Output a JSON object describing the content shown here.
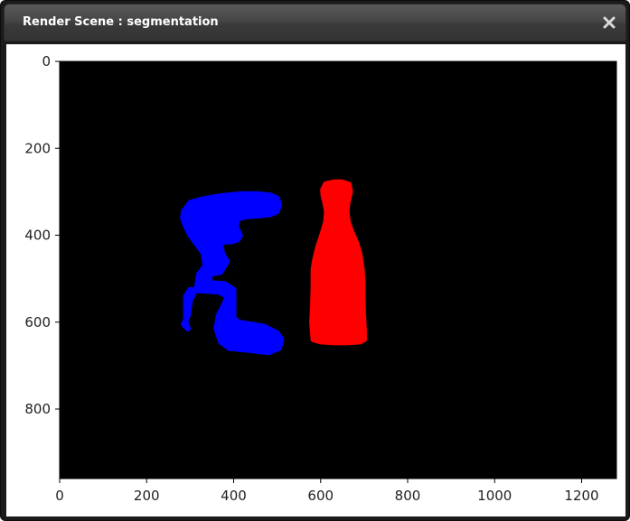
{
  "window": {
    "title": "Render Scene : segmentation",
    "close_icon": "close-x-icon"
  },
  "chart_data": {
    "type": "image",
    "description_free": true,
    "xlim": [
      0,
      1280
    ],
    "ylim": [
      960,
      0
    ],
    "x_ticks": [
      0,
      200,
      400,
      600,
      800,
      1000,
      1200
    ],
    "y_ticks": [
      0,
      200,
      400,
      600,
      800
    ],
    "x_tick_labels": [
      "0",
      "200",
      "400",
      "600",
      "800",
      "1000",
      "1200"
    ],
    "y_tick_labels": [
      "0",
      "200",
      "400",
      "600",
      "800"
    ],
    "background_color": "#000000",
    "segments": [
      {
        "color": "#0000ff",
        "polygon": [
          [
            285,
            345
          ],
          [
            300,
            325
          ],
          [
            325,
            318
          ],
          [
            355,
            312
          ],
          [
            385,
            308
          ],
          [
            420,
            305
          ],
          [
            455,
            305
          ],
          [
            485,
            308
          ],
          [
            500,
            315
          ],
          [
            505,
            330
          ],
          [
            500,
            345
          ],
          [
            485,
            352
          ],
          [
            460,
            355
          ],
          [
            430,
            357
          ],
          [
            410,
            362
          ],
          [
            405,
            380
          ],
          [
            415,
            400
          ],
          [
            410,
            410
          ],
          [
            395,
            415
          ],
          [
            375,
            415
          ],
          [
            370,
            425
          ],
          [
            375,
            445
          ],
          [
            385,
            460
          ],
          [
            370,
            485
          ],
          [
            345,
            490
          ],
          [
            345,
            510
          ],
          [
            380,
            512
          ],
          [
            400,
            525
          ],
          [
            400,
            570
          ],
          [
            400,
            590
          ],
          [
            410,
            600
          ],
          [
            440,
            605
          ],
          [
            470,
            610
          ],
          [
            500,
            625
          ],
          [
            510,
            640
          ],
          [
            505,
            660
          ],
          [
            480,
            670
          ],
          [
            440,
            665
          ],
          [
            390,
            660
          ],
          [
            370,
            645
          ],
          [
            360,
            615
          ],
          [
            365,
            585
          ],
          [
            380,
            555
          ],
          [
            385,
            540
          ],
          [
            365,
            530
          ],
          [
            330,
            528
          ],
          [
            300,
            525
          ],
          [
            290,
            540
          ],
          [
            290,
            600
          ],
          [
            295,
            615
          ],
          [
            285,
            605
          ],
          [
            295,
            585
          ],
          [
            300,
            550
          ],
          [
            315,
            520
          ],
          [
            320,
            490
          ],
          [
            335,
            470
          ],
          [
            330,
            440
          ],
          [
            315,
            420
          ],
          [
            300,
            400
          ],
          [
            290,
            380
          ],
          [
            283,
            360
          ]
        ]
      },
      {
        "color": "#ff0000",
        "polygon": [
          [
            605,
            295
          ],
          [
            612,
            282
          ],
          [
            630,
            278
          ],
          [
            650,
            278
          ],
          [
            665,
            283
          ],
          [
            668,
            300
          ],
          [
            662,
            325
          ],
          [
            660,
            345
          ],
          [
            663,
            370
          ],
          [
            672,
            395
          ],
          [
            683,
            420
          ],
          [
            690,
            445
          ],
          [
            695,
            480
          ],
          [
            697,
            510
          ],
          [
            697,
            540
          ],
          [
            698,
            580
          ],
          [
            700,
            620
          ],
          [
            700,
            640
          ],
          [
            690,
            645
          ],
          [
            660,
            647
          ],
          [
            630,
            647
          ],
          [
            600,
            645
          ],
          [
            583,
            640
          ],
          [
            580,
            600
          ],
          [
            582,
            560
          ],
          [
            583,
            520
          ],
          [
            583,
            480
          ],
          [
            586,
            460
          ],
          [
            593,
            430
          ],
          [
            603,
            400
          ],
          [
            612,
            370
          ],
          [
            614,
            345
          ],
          [
            610,
            325
          ],
          [
            606,
            308
          ]
        ]
      }
    ]
  }
}
